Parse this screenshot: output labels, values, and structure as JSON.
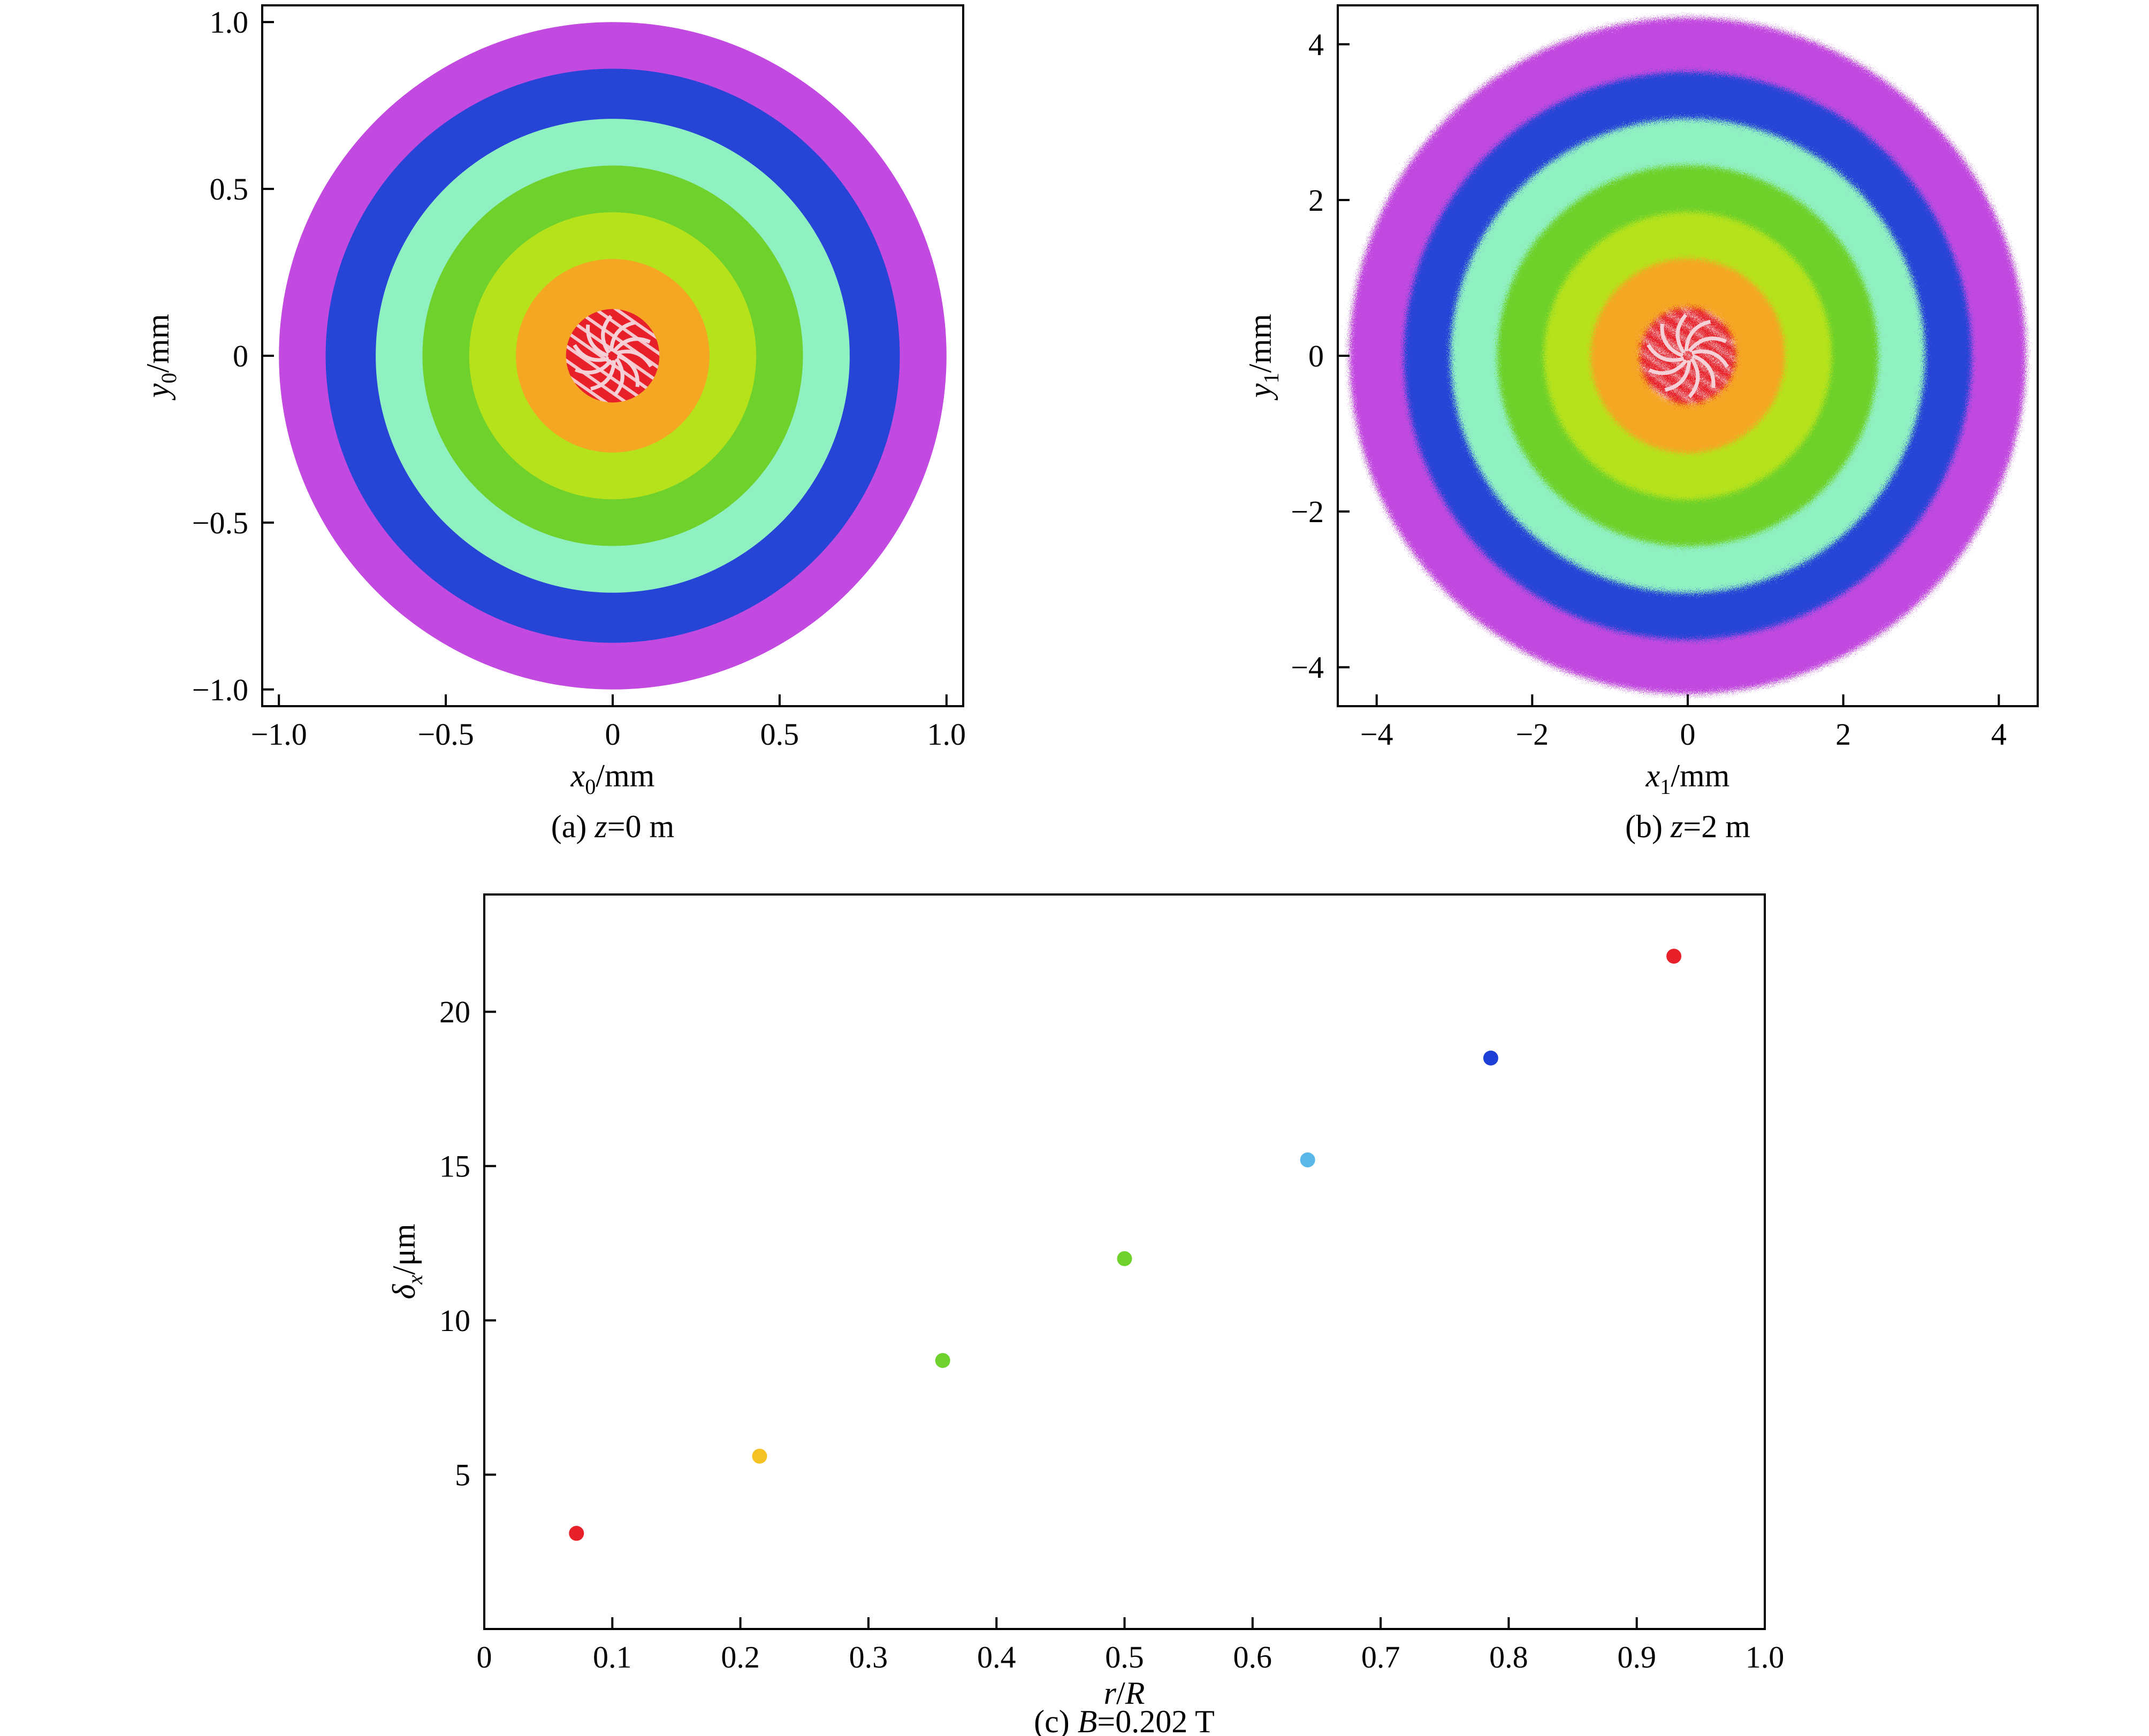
{
  "chart_data": [
    {
      "type": "scatter",
      "panel": "a",
      "caption": "(a) z=0 m",
      "xlabel": "x0/mm",
      "ylabel": "y0/mm",
      "xlim": [
        -1.05,
        1.05
      ],
      "ylim": [
        -1.05,
        1.05
      ],
      "xticks": [
        -1.0,
        -0.5,
        0,
        0.5,
        1.0
      ],
      "yticks": [
        -1.0,
        -0.5,
        0,
        0.5,
        1.0
      ],
      "xtick_labels": [
        "−1.0",
        "−0.5",
        "0",
        "0.5",
        "1.0"
      ],
      "ytick_labels": [
        "−1.0",
        "−0.5",
        "0",
        "0.5",
        "1.0"
      ],
      "rings": [
        {
          "r_inner": 0.0,
          "r_outer": 0.14,
          "color": "#e8202a"
        },
        {
          "r_inner": 0.14,
          "r_outer": 0.29,
          "color": "#f5a623"
        },
        {
          "r_inner": 0.29,
          "r_outer": 0.43,
          "color": "#b6e21b"
        },
        {
          "r_inner": 0.43,
          "r_outer": 0.57,
          "color": "#6ed12c"
        },
        {
          "r_inner": 0.57,
          "r_outer": 0.71,
          "color": "#8ff0c2"
        },
        {
          "r_inner": 0.71,
          "r_outer": 0.86,
          "color": "#2644d6"
        },
        {
          "r_inner": 0.86,
          "r_outer": 1.0,
          "color": "#c24ae0"
        }
      ]
    },
    {
      "type": "scatter",
      "panel": "b",
      "caption": "(b) z=2 m",
      "xlabel": "x1/mm",
      "ylabel": "y1/mm",
      "xlim": [
        -4.5,
        4.5
      ],
      "ylim": [
        -4.5,
        4.5
      ],
      "xticks": [
        -4,
        -2,
        0,
        2,
        4
      ],
      "yticks": [
        -4,
        -2,
        0,
        2,
        4
      ],
      "xtick_labels": [
        "−4",
        "−2",
        "0",
        "2",
        "4"
      ],
      "ytick_labels": [
        "−4",
        "−2",
        "0",
        "2",
        "4"
      ],
      "rings": [
        {
          "r_inner": 0.0,
          "r_outer": 0.62,
          "color": "#e8202a"
        },
        {
          "r_inner": 0.62,
          "r_outer": 1.25,
          "color": "#f5a623"
        },
        {
          "r_inner": 1.25,
          "r_outer": 1.85,
          "color": "#b6e21b"
        },
        {
          "r_inner": 1.85,
          "r_outer": 2.45,
          "color": "#6ed12c"
        },
        {
          "r_inner": 2.45,
          "r_outer": 3.05,
          "color": "#8ff0c2"
        },
        {
          "r_inner": 3.05,
          "r_outer": 3.65,
          "color": "#2644d6"
        },
        {
          "r_inner": 3.65,
          "r_outer": 4.35,
          "color": "#c24ae0"
        }
      ]
    },
    {
      "type": "scatter",
      "panel": "c",
      "caption": "(c) B=0.202 T",
      "xlabel": "r/R",
      "ylabel": "δx/μm",
      "xlim": [
        0,
        1.0
      ],
      "ylim": [
        0,
        23.8
      ],
      "xticks": [
        0,
        0.1,
        0.2,
        0.3,
        0.4,
        0.5,
        0.6,
        0.7,
        0.8,
        0.9,
        1.0
      ],
      "yticks": [
        5,
        10,
        15,
        20
      ],
      "xtick_labels": [
        "0",
        "0.1",
        "0.2",
        "0.3",
        "0.4",
        "0.5",
        "0.6",
        "0.7",
        "0.8",
        "0.9",
        "1.0"
      ],
      "ytick_labels": [
        "5",
        "10",
        "15",
        "20"
      ],
      "grid": false,
      "points": [
        {
          "x": 0.072,
          "y": 3.1,
          "color": "#e8202a"
        },
        {
          "x": 0.215,
          "y": 5.6,
          "color": "#f5c223"
        },
        {
          "x": 0.358,
          "y": 8.7,
          "color": "#6ed12c"
        },
        {
          "x": 0.5,
          "y": 12.0,
          "color": "#6ed12c"
        },
        {
          "x": 0.643,
          "y": 15.2,
          "color": "#5ab8e8"
        },
        {
          "x": 0.786,
          "y": 18.5,
          "color": "#1e3fd6"
        },
        {
          "x": 0.929,
          "y": 21.8,
          "color": "#e8202a"
        }
      ]
    }
  ],
  "label_parts": {
    "a": {
      "x_base": "x",
      "x_sub": "0",
      "x_unit": "/mm",
      "y_base": "y",
      "y_sub": "0",
      "y_unit": "/mm",
      "cap_pre": "(a) ",
      "cap_var": "z",
      "cap_post": "=0 m"
    },
    "b": {
      "x_base": "x",
      "x_sub": "1",
      "x_unit": "/mm",
      "y_base": "y",
      "y_sub": "1",
      "y_unit": "/mm",
      "cap_pre": "(b) ",
      "cap_var": "z",
      "cap_post": "=2 m"
    },
    "c": {
      "x_base": "r",
      "x_unit": "/",
      "x_base2": "R",
      "y_base": "δ",
      "y_sub": "x",
      "y_unit": "/μm",
      "cap_pre": "(c) ",
      "cap_var": "B",
      "cap_post": "=0.202 T"
    }
  }
}
